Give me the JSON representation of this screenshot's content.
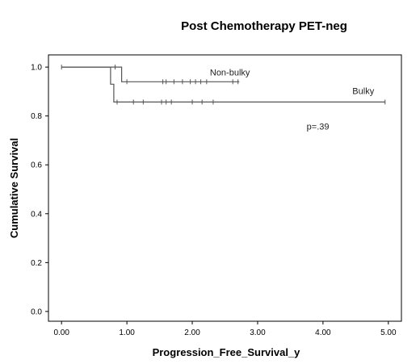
{
  "chart_data": {
    "type": "line",
    "title": "Post Chemotherapy PET-neg",
    "xlabel": "Progression_Free_Survival_y",
    "ylabel": "Cumulative Survival",
    "xlim": [
      -0.2,
      5.2
    ],
    "ylim": [
      -0.04,
      1.05
    ],
    "x_ticks": [
      0.0,
      1.0,
      2.0,
      3.0,
      4.0,
      5.0
    ],
    "x_tick_labels": [
      "0.00",
      "1.00",
      "2.00",
      "3.00",
      "4.00",
      "5.00"
    ],
    "y_ticks": [
      0.0,
      0.2,
      0.4,
      0.6,
      0.8,
      1.0
    ],
    "y_tick_labels": [
      "0.0",
      "0.2",
      "0.4",
      "0.6",
      "0.8",
      "1.0"
    ],
    "grid": false,
    "legend": "none",
    "series": [
      {
        "name": "Non-bulky",
        "color": "#555555",
        "steps": [
          [
            0.0,
            1.0
          ],
          [
            0.92,
            1.0
          ],
          [
            0.92,
            0.94
          ],
          [
            2.72,
            0.94
          ]
        ],
        "censored": [
          [
            0.0,
            1.0
          ],
          [
            0.82,
            1.0
          ],
          [
            1.0,
            0.94
          ],
          [
            1.55,
            0.94
          ],
          [
            1.6,
            0.94
          ],
          [
            1.72,
            0.94
          ],
          [
            1.85,
            0.94
          ],
          [
            1.97,
            0.94
          ],
          [
            2.05,
            0.94
          ],
          [
            2.13,
            0.94
          ],
          [
            2.22,
            0.94
          ],
          [
            2.62,
            0.94
          ],
          [
            2.7,
            0.94
          ]
        ]
      },
      {
        "name": "Bulky",
        "color": "#555555",
        "steps": [
          [
            0.0,
            1.0
          ],
          [
            0.75,
            1.0
          ],
          [
            0.75,
            0.93
          ],
          [
            0.8,
            0.93
          ],
          [
            0.8,
            0.857
          ],
          [
            4.95,
            0.857
          ]
        ],
        "censored": [
          [
            0.85,
            0.857
          ],
          [
            1.1,
            0.857
          ],
          [
            1.25,
            0.857
          ],
          [
            1.53,
            0.857
          ],
          [
            1.6,
            0.857
          ],
          [
            1.68,
            0.857
          ],
          [
            2.0,
            0.857
          ],
          [
            2.15,
            0.857
          ],
          [
            2.32,
            0.857
          ],
          [
            4.95,
            0.857
          ]
        ]
      }
    ],
    "annotations": [
      {
        "text": "Non-bulky",
        "x": 2.27,
        "y": 0.965
      },
      {
        "text": "Bulky",
        "x": 4.45,
        "y": 0.89
      },
      {
        "text": "p=.39",
        "x": 3.75,
        "y": 0.745
      }
    ]
  }
}
